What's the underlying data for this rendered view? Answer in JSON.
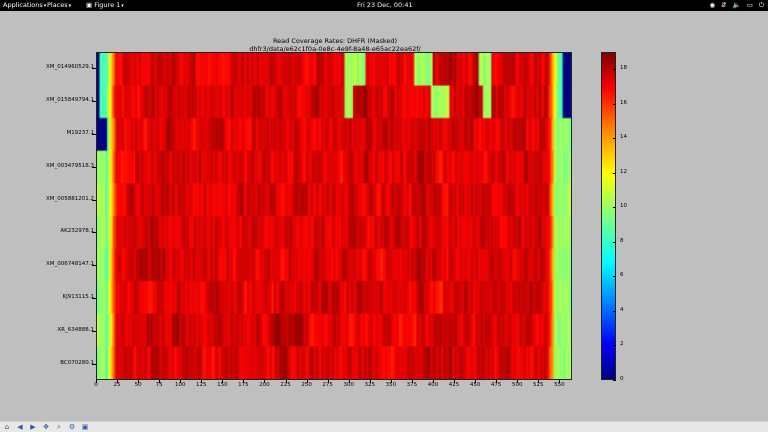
{
  "topbar": {
    "applications": "Applications",
    "places": "Places",
    "window_name": "Figure 1",
    "clock": "Fri 23 Dec, 00:41",
    "icons": [
      "accessibility-icon",
      "network-icon",
      "volume-icon",
      "battery-icon",
      "power-icon"
    ]
  },
  "chart_data": {
    "type": "heatmap",
    "title": "Read Coverage Rates: DHFR (Masked)",
    "subtitle": "dhfr3/data/e62c1f0a-0e8c-4e9f-8a48-e65ac22ea62f/",
    "rows": [
      "XM_014960529.1",
      "XM_015849794.1",
      "M19237.1",
      "XM_003479518.3",
      "XM_005881201.2",
      "AK232978.1",
      "XM_006748147.1",
      "KJ913115.1",
      "XR_634888.1",
      "BC070280.1"
    ],
    "x_ticks": [
      "0",
      "25",
      "50",
      "75",
      "100",
      "125",
      "150",
      "175",
      "200",
      "225",
      "250",
      "275",
      "300",
      "325",
      "350",
      "375",
      "400",
      "425",
      "450",
      "475",
      "500",
      "525",
      "550"
    ],
    "xlim": [
      0,
      565
    ],
    "colorbar": {
      "colormap": "jet",
      "min": 0,
      "max": 19,
      "ticks": [
        "0",
        "2",
        "4",
        "6",
        "8",
        "10",
        "12",
        "14",
        "16",
        "18"
      ]
    },
    "approximate_row_profiles": [
      {
        "row": "XM_014960529.1",
        "masked_regions": [
          [
            0,
            3
          ],
          [
            555,
            565
          ]
        ],
        "low_regions": [
          [
            295,
            320
          ],
          [
            378,
            400
          ],
          [
            455,
            470
          ]
        ]
      },
      {
        "row": "XM_015849794.1",
        "masked_regions": [
          [
            0,
            3
          ],
          [
            555,
            565
          ]
        ],
        "low_regions": [
          [
            295,
            305
          ],
          [
            398,
            420
          ],
          [
            460,
            470
          ]
        ]
      },
      {
        "row": "M19237.1",
        "masked_regions": [
          [
            0,
            12
          ]
        ],
        "low_regions": [
          [
            545,
            565
          ]
        ]
      },
      {
        "row": "XM_003479518.3",
        "masked_regions": [],
        "low_regions": [
          [
            0,
            10
          ],
          [
            545,
            565
          ]
        ]
      },
      {
        "row": "XM_005881201.2",
        "masked_regions": [],
        "low_regions": [
          [
            0,
            10
          ],
          [
            545,
            565
          ]
        ]
      },
      {
        "row": "AK232978.1",
        "masked_regions": [],
        "low_regions": [
          [
            0,
            10
          ],
          [
            545,
            565
          ]
        ]
      },
      {
        "row": "XM_006748147.1",
        "masked_regions": [],
        "low_regions": [
          [
            0,
            10
          ],
          [
            545,
            565
          ]
        ]
      },
      {
        "row": "KJ913115.1",
        "masked_regions": [],
        "low_regions": [
          [
            0,
            10
          ],
          [
            545,
            565
          ]
        ]
      },
      {
        "row": "XR_634888.1",
        "masked_regions": [],
        "low_regions": [
          [
            0,
            10
          ],
          [
            545,
            565
          ]
        ]
      },
      {
        "row": "BC070280.1",
        "masked_regions": [],
        "low_regions": [
          [
            0,
            10
          ],
          [
            545,
            565
          ]
        ]
      }
    ]
  },
  "toolbar": {
    "buttons": [
      "home-icon",
      "back-icon",
      "forward-icon",
      "pan-icon",
      "zoom-icon",
      "configure-icon",
      "save-icon"
    ]
  }
}
